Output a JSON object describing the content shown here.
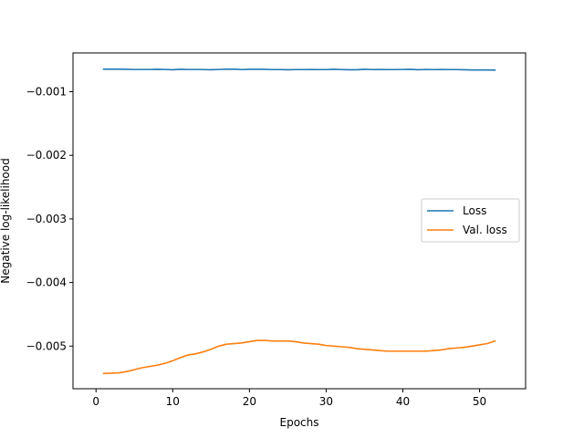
{
  "chart_data": {
    "type": "line",
    "xlabel": "Epochs",
    "ylabel": "Negative log-likelihood",
    "xlim": [
      -3,
      56
    ],
    "ylim": [
      -0.00567,
      -0.00039
    ],
    "xticks": [
      0,
      10,
      20,
      30,
      40,
      50
    ],
    "xtick_labels": [
      "0",
      "10",
      "20",
      "30",
      "40",
      "50"
    ],
    "yticks": [
      -0.001,
      -0.002,
      -0.003,
      -0.004,
      -0.005
    ],
    "ytick_labels": [
      "−0.001",
      "−0.002",
      "−0.003",
      "−0.004",
      "−0.005"
    ],
    "grid": false,
    "legend_placement": "center-right",
    "x": [
      1,
      2,
      3,
      4,
      5,
      6,
      7,
      8,
      9,
      10,
      11,
      12,
      13,
      14,
      15,
      16,
      17,
      18,
      19,
      20,
      21,
      22,
      23,
      24,
      25,
      26,
      27,
      28,
      29,
      30,
      31,
      32,
      33,
      34,
      35,
      36,
      37,
      38,
      39,
      40,
      41,
      42,
      43,
      44,
      45,
      46,
      47,
      48,
      49,
      50,
      51,
      52
    ],
    "series": [
      {
        "name": "Loss",
        "color": "#1f77b4",
        "values": [
          -0.000645,
          -0.000645,
          -0.000645,
          -0.000648,
          -0.00065,
          -0.00065,
          -0.00065,
          -0.000648,
          -0.00065,
          -0.000655,
          -0.000648,
          -0.00065,
          -0.00065,
          -0.000652,
          -0.000655,
          -0.00065,
          -0.000645,
          -0.000645,
          -0.000652,
          -0.000648,
          -0.000648,
          -0.000648,
          -0.000652,
          -0.000652,
          -0.000655,
          -0.000652,
          -0.000652,
          -0.00065,
          -0.000652,
          -0.000652,
          -0.000648,
          -0.000652,
          -0.000655,
          -0.000655,
          -0.000648,
          -0.000652,
          -0.00065,
          -0.000652,
          -0.000652,
          -0.00065,
          -0.000648,
          -0.000655,
          -0.00065,
          -0.000652,
          -0.00065,
          -0.000652,
          -0.000652,
          -0.000655,
          -0.000658,
          -0.000658,
          -0.000658,
          -0.00066
        ]
      },
      {
        "name": "Val. loss",
        "color": "#ff7f0e",
        "values": [
          -0.00543,
          -0.005425,
          -0.00542,
          -0.0054,
          -0.00537,
          -0.00534,
          -0.00532,
          -0.0053,
          -0.00527,
          -0.00523,
          -0.00518,
          -0.00514,
          -0.00512,
          -0.00509,
          -0.00505,
          -0.005,
          -0.00497,
          -0.00496,
          -0.00495,
          -0.00493,
          -0.00491,
          -0.00491,
          -0.00492,
          -0.00492,
          -0.00492,
          -0.00493,
          -0.00495,
          -0.00496,
          -0.00497,
          -0.00499,
          -0.005,
          -0.00501,
          -0.00502,
          -0.00504,
          -0.00505,
          -0.00506,
          -0.00507,
          -0.00508,
          -0.00508,
          -0.00508,
          -0.00508,
          -0.00508,
          -0.00508,
          -0.00507,
          -0.00506,
          -0.00504,
          -0.00503,
          -0.00502,
          -0.005,
          -0.00498,
          -0.00496,
          -0.00492
        ]
      }
    ]
  }
}
